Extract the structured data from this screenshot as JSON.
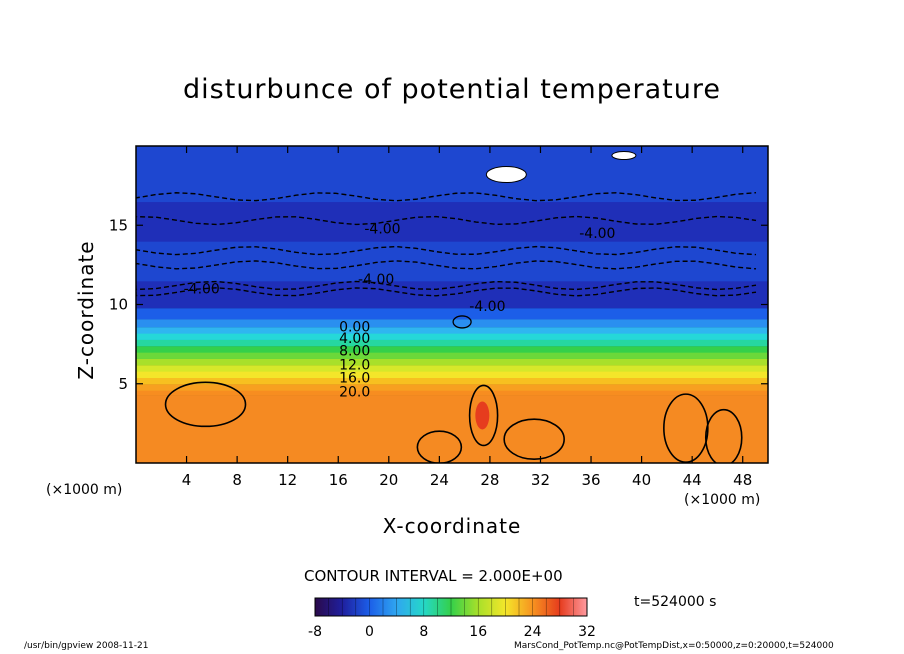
{
  "chart_data": {
    "type": "heatmap",
    "title": "disturbunce of potential temperature",
    "xlabel": "X-coordinate",
    "ylabel": "Z-coordinate",
    "x_unit": "(×1000 m)",
    "y_unit": "(×1000 m)",
    "xlim": [
      0,
      50
    ],
    "ylim": [
      0,
      20
    ],
    "x_ticks": [
      4,
      8,
      12,
      16,
      20,
      24,
      28,
      32,
      36,
      40,
      44,
      48
    ],
    "y_ticks": [
      5,
      10,
      15
    ],
    "contour_interval_text": "CONTOUR INTERVAL = 2.000E+00",
    "time_text": "t=524000 s",
    "colorbar": {
      "min": -8,
      "max": 32,
      "ticks": [
        -8,
        0,
        8,
        16,
        24,
        32
      ]
    },
    "contour_labels": [
      {
        "text": "-4.00",
        "x": 19.5,
        "z": 14.8
      },
      {
        "text": "-4.00",
        "x": 36.5,
        "z": 14.5
      },
      {
        "text": "-4.00",
        "x": 19.0,
        "z": 11.6
      },
      {
        "text": "-4.00",
        "x": 5.2,
        "z": 11.0
      },
      {
        "text": "-4.00",
        "x": 27.8,
        "z": 9.9
      },
      {
        "text": "0.00",
        "x": 17.3,
        "z": 8.6
      },
      {
        "text": "4.00",
        "x": 17.3,
        "z": 7.9
      },
      {
        "text": "8.00",
        "x": 17.3,
        "z": 7.1
      },
      {
        "text": "12.0",
        "x": 17.3,
        "z": 6.2
      },
      {
        "text": "16.0",
        "x": 17.3,
        "z": 5.4
      },
      {
        "text": "20.0",
        "x": 17.3,
        "z": 4.5
      }
    ],
    "bands": [
      {
        "z0": 0.0,
        "z1": 4.3,
        "value": 26
      },
      {
        "z0": 4.3,
        "z1": 4.6,
        "value": 22
      },
      {
        "z0": 4.6,
        "z1": 5.0,
        "value": 20
      },
      {
        "z0": 5.0,
        "z1": 5.4,
        "value": 18
      },
      {
        "z0": 5.4,
        "z1": 5.8,
        "value": 16
      },
      {
        "z0": 5.8,
        "z1": 6.2,
        "value": 14
      },
      {
        "z0": 6.2,
        "z1": 6.6,
        "value": 12
      },
      {
        "z0": 6.6,
        "z1": 7.0,
        "value": 10
      },
      {
        "z0": 7.0,
        "z1": 7.4,
        "value": 8
      },
      {
        "z0": 7.4,
        "z1": 7.8,
        "value": 6
      },
      {
        "z0": 7.8,
        "z1": 8.2,
        "value": 4
      },
      {
        "z0": 8.2,
        "z1": 8.6,
        "value": 2
      },
      {
        "z0": 8.6,
        "z1": 9.1,
        "value": 0
      },
      {
        "z0": 9.1,
        "z1": 9.8,
        "value": -2
      },
      {
        "z0": 9.8,
        "z1": 11.5,
        "value": -4
      },
      {
        "z0": 11.5,
        "z1": 14.0,
        "value": -3
      },
      {
        "z0": 14.0,
        "z1": 16.5,
        "value": -4
      },
      {
        "z0": 16.5,
        "z1": 20.0,
        "value": -3
      }
    ],
    "footer_left": "/usr/bin/gpview   2008-11-21",
    "footer_right": "MarsCond_PotTemp.nc@PotTempDist,x=0:50000,z=0:20000,t=524000"
  }
}
